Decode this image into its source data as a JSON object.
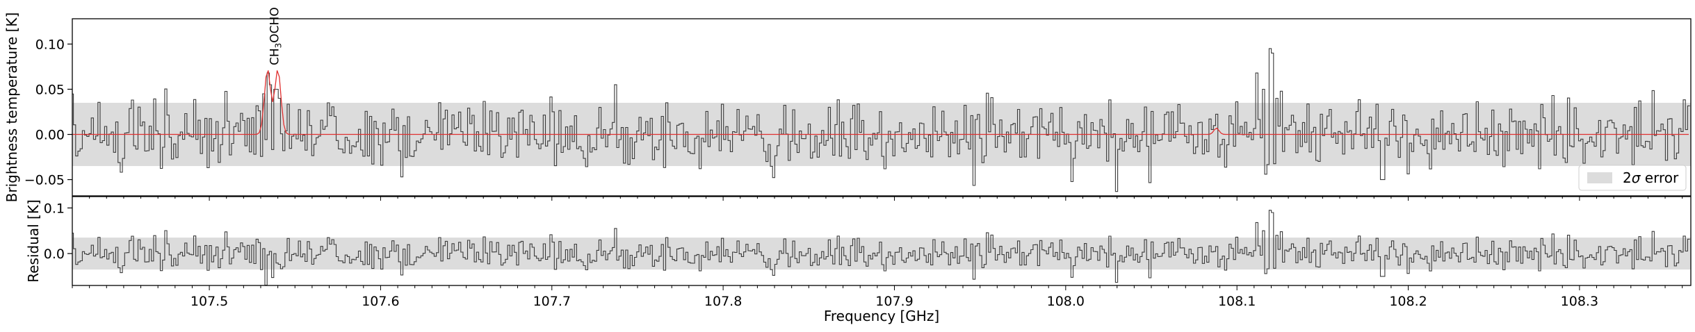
{
  "chart_data": {
    "type": "line",
    "x_range": [
      107.42,
      108.365
    ],
    "xlabel": "Frequency [GHz]",
    "x_ticks": [
      107.5,
      107.6,
      107.7,
      107.8,
      107.9,
      108.0,
      108.1,
      108.2,
      108.3
    ],
    "x_tick_labels": [
      "107.5",
      "107.6",
      "107.7",
      "107.8",
      "107.9",
      "108.0",
      "108.1",
      "108.2",
      "108.3"
    ],
    "top_panel": {
      "ylabel": "Brightness temperature [K]",
      "ylim": [
        -0.068,
        0.128
      ],
      "y_ticks": [
        -0.05,
        0.0,
        0.05,
        0.1
      ],
      "y_tick_labels": [
        "−0.05",
        "0.00",
        "0.05",
        "0.10"
      ],
      "error_band": [
        -0.035,
        0.035
      ],
      "legend": {
        "placement": "lower-right",
        "label_prefix": "2",
        "label_symbol": "σ",
        "label_suffix": " error",
        "swatch_color": "#dcdcdc"
      },
      "model_peaks": [
        {
          "x": 107.534,
          "y": 0.072,
          "width": 0.0018
        },
        {
          "x": 107.54,
          "y": 0.072,
          "width": 0.0018
        },
        {
          "x": 108.088,
          "y": 0.007,
          "width": 0.0015
        }
      ],
      "annotation": {
        "x": 107.538,
        "text_main": "CH",
        "text_sub": "3",
        "text_rest": "OCHO"
      }
    },
    "bottom_panel": {
      "ylabel": "Residual [K]",
      "ylim": [
        -0.07,
        0.125
      ],
      "y_ticks": [
        0.0,
        0.1
      ],
      "y_tick_labels": [
        "0.0",
        "0.1"
      ],
      "error_band": [
        -0.035,
        0.035
      ]
    },
    "observed_spectrum": {
      "channel_width": 0.0013,
      "noise_sigma": 0.0175,
      "seed": 9271,
      "features": [
        {
          "x": 107.532,
          "y": 0.045
        },
        {
          "x": 107.534,
          "y": 0.068
        },
        {
          "x": 107.536,
          "y": 0.055
        },
        {
          "x": 107.539,
          "y": 0.05
        },
        {
          "x": 107.541,
          "y": 0.04
        },
        {
          "x": 108.112,
          "y": 0.068
        },
        {
          "x": 108.115,
          "y": 0.05
        },
        {
          "x": 108.119,
          "y": 0.095
        },
        {
          "x": 108.121,
          "y": 0.09
        },
        {
          "x": 108.123,
          "y": 0.04
        },
        {
          "x": 108.185,
          "y": -0.05
        }
      ]
    },
    "colors": {
      "observed": "#3a3a3a",
      "model": "#e03030",
      "band": "#dcdcdc",
      "axes": "#000000"
    }
  }
}
